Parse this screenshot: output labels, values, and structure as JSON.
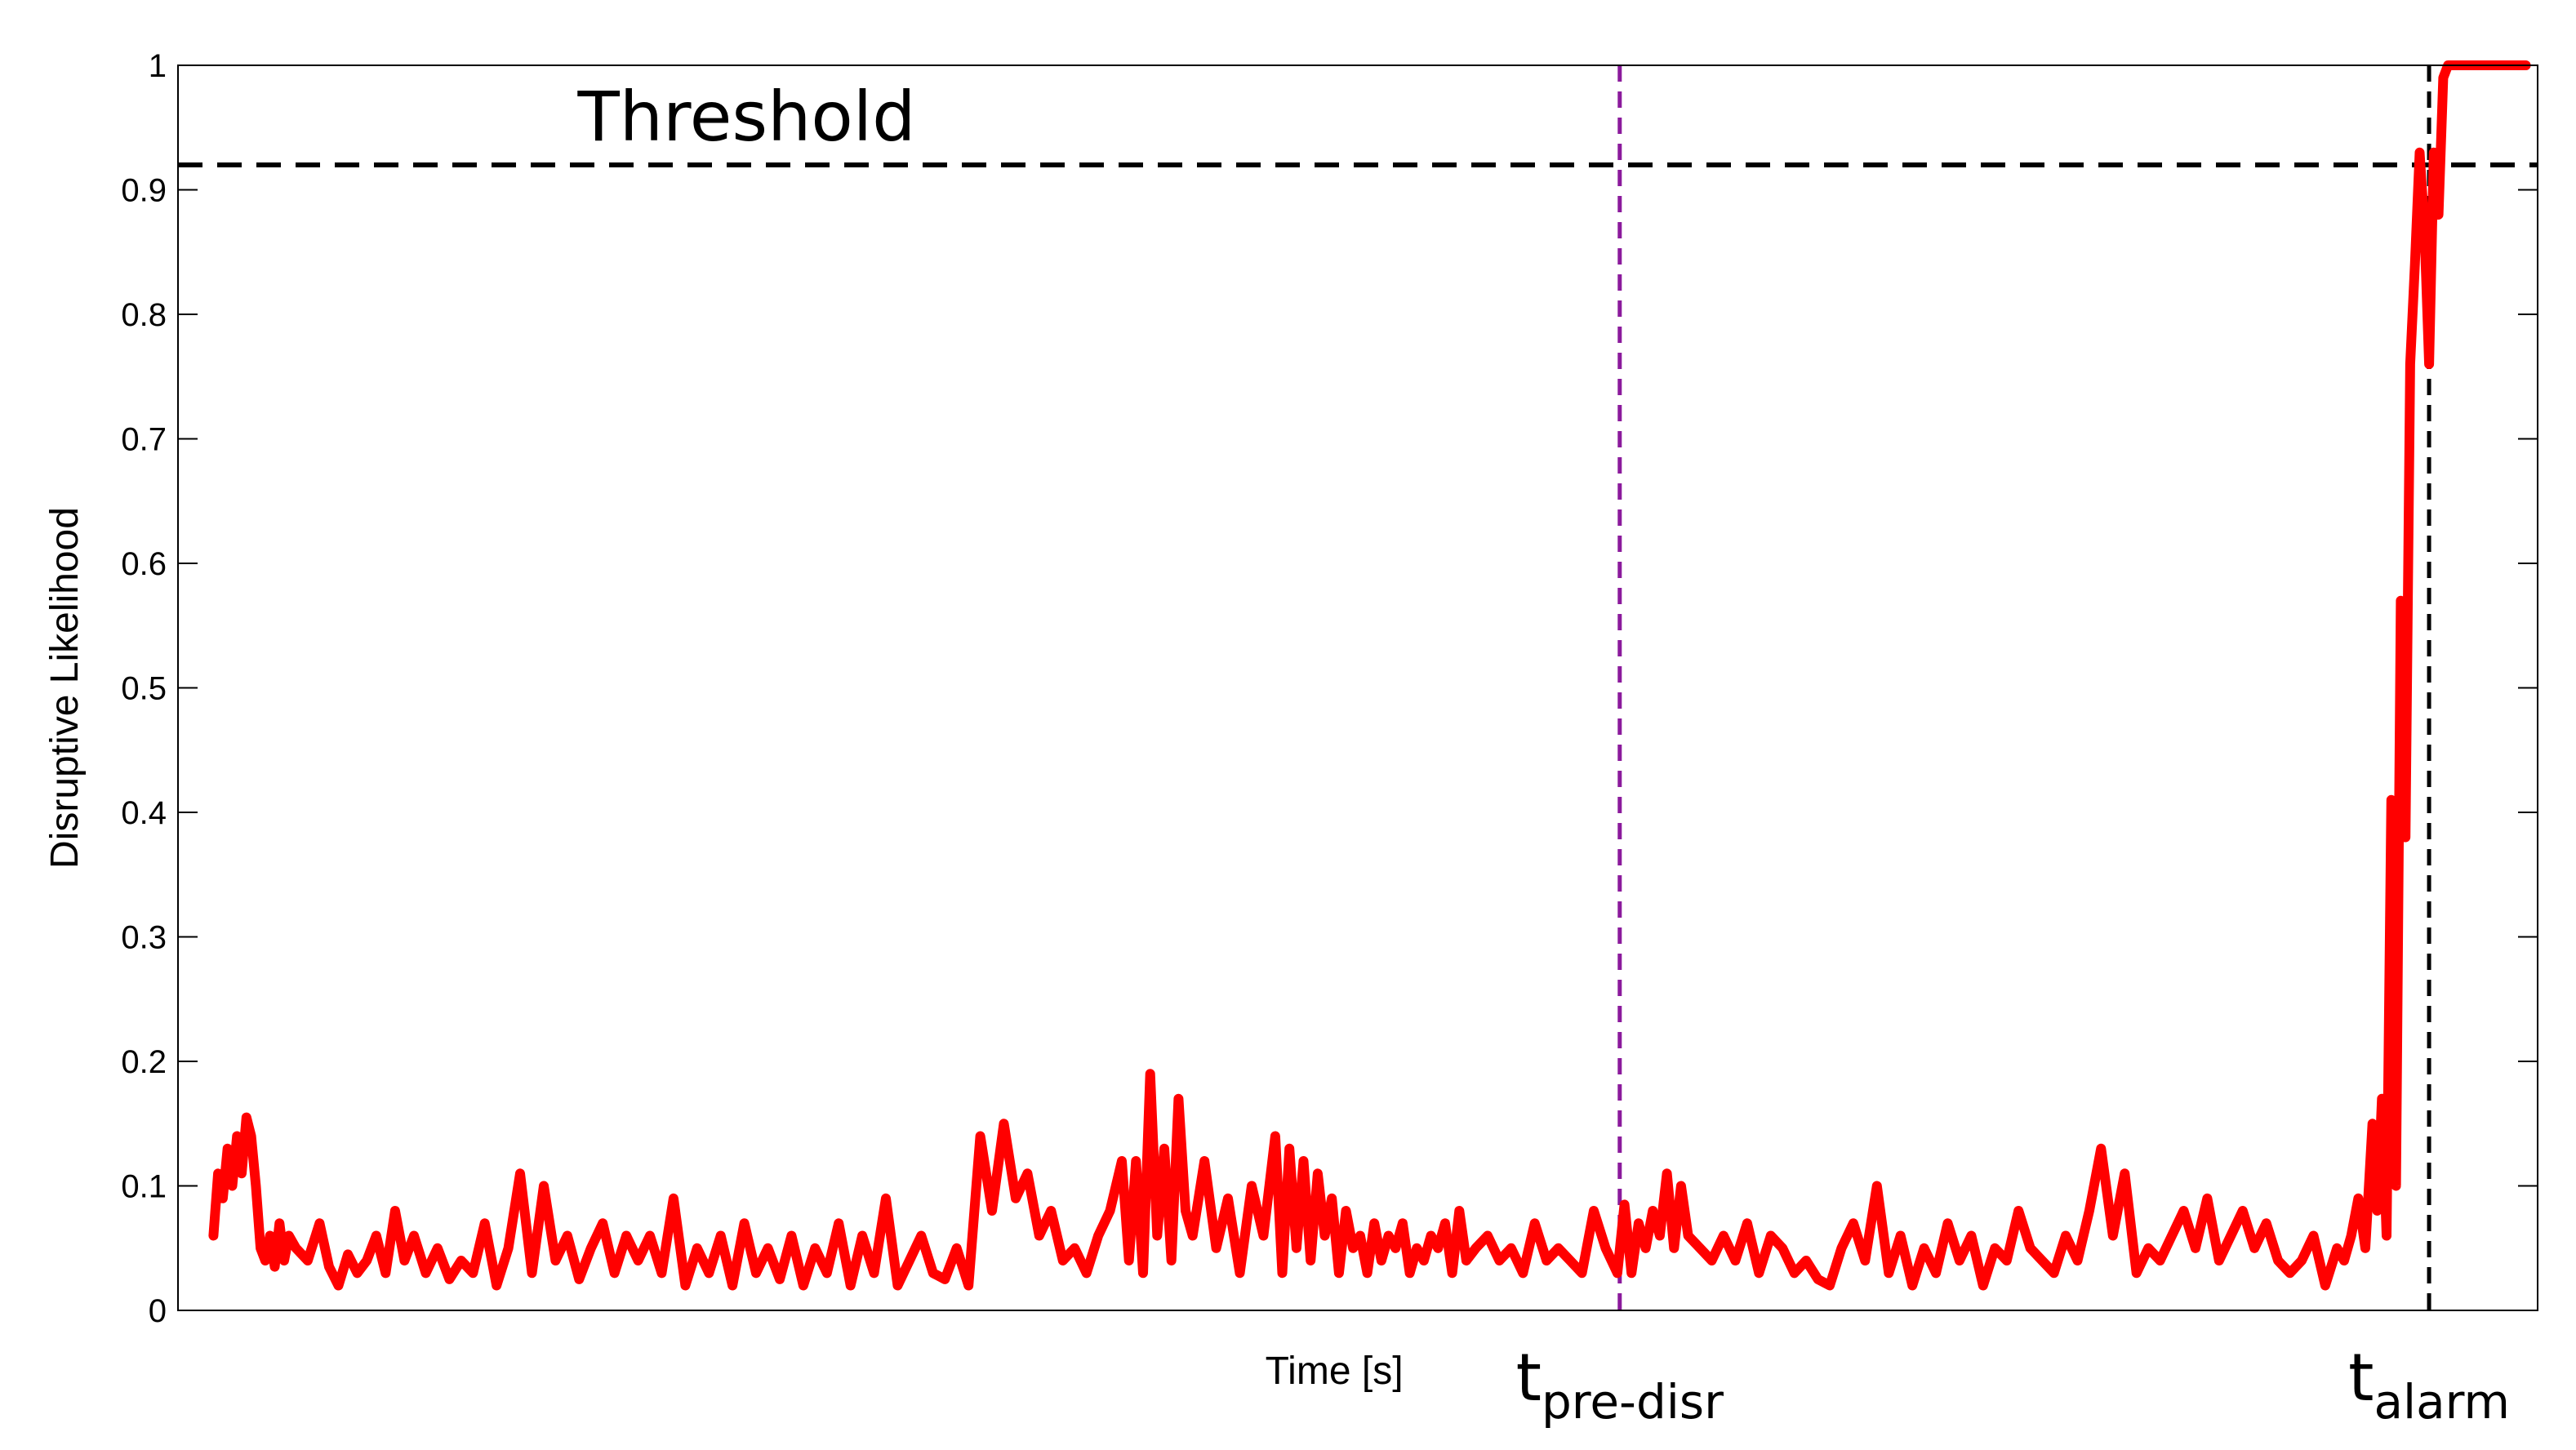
{
  "chart_data": {
    "type": "line",
    "title": "",
    "xlabel": "Time [s]",
    "ylabel": "Disruptive Likelihood",
    "ylim": [
      0,
      1
    ],
    "xlim": [
      0,
      1
    ],
    "yticks": [
      "0",
      "0.1",
      "0.2",
      "0.3",
      "0.4",
      "0.5",
      "0.6",
      "0.7",
      "0.8",
      "0.9",
      "1"
    ],
    "grid": false,
    "legend": "none",
    "line_color": "#ff0000",
    "threshold": {
      "label": "Threshold",
      "value": 0.92
    },
    "markers": [
      {
        "id": "pre_disr",
        "main": "t",
        "sub": "pre-disr",
        "x": 0.611,
        "color": "#8b1a9c"
      },
      {
        "id": "alarm",
        "main": "t",
        "sub": "alarm",
        "x": 0.954,
        "color": "#000000"
      }
    ],
    "series": [
      {
        "x": [
          0.015,
          0.017,
          0.019,
          0.021,
          0.023,
          0.025,
          0.027,
          0.029,
          0.031,
          0.033,
          0.035,
          0.037,
          0.039,
          0.041,
          0.043,
          0.045,
          0.047,
          0.05,
          0.055,
          0.06,
          0.064,
          0.068,
          0.072,
          0.076,
          0.08,
          0.084,
          0.088,
          0.092,
          0.096,
          0.1,
          0.105,
          0.11,
          0.115,
          0.12,
          0.125,
          0.13,
          0.135,
          0.14,
          0.145,
          0.15,
          0.155,
          0.16,
          0.165,
          0.17,
          0.175,
          0.18,
          0.185,
          0.19,
          0.195,
          0.2,
          0.205,
          0.21,
          0.215,
          0.22,
          0.225,
          0.23,
          0.235,
          0.24,
          0.245,
          0.25,
          0.255,
          0.26,
          0.265,
          0.27,
          0.275,
          0.28,
          0.285,
          0.29,
          0.295,
          0.3,
          0.305,
          0.31,
          0.315,
          0.32,
          0.325,
          0.33,
          0.335,
          0.34,
          0.345,
          0.35,
          0.355,
          0.36,
          0.365,
          0.37,
          0.375,
          0.38,
          0.385,
          0.39,
          0.395,
          0.4,
          0.403,
          0.406,
          0.409,
          0.412,
          0.415,
          0.418,
          0.421,
          0.424,
          0.427,
          0.43,
          0.435,
          0.44,
          0.445,
          0.45,
          0.455,
          0.46,
          0.465,
          0.468,
          0.471,
          0.474,
          0.477,
          0.48,
          0.483,
          0.486,
          0.489,
          0.492,
          0.495,
          0.498,
          0.501,
          0.504,
          0.507,
          0.51,
          0.513,
          0.516,
          0.519,
          0.522,
          0.525,
          0.528,
          0.531,
          0.534,
          0.537,
          0.54,
          0.543,
          0.546,
          0.55,
          0.555,
          0.56,
          0.565,
          0.57,
          0.575,
          0.58,
          0.585,
          0.59,
          0.595,
          0.6,
          0.605,
          0.61,
          0.613,
          0.616,
          0.619,
          0.622,
          0.625,
          0.628,
          0.631,
          0.634,
          0.637,
          0.64,
          0.645,
          0.65,
          0.655,
          0.66,
          0.665,
          0.67,
          0.675,
          0.68,
          0.685,
          0.69,
          0.695,
          0.7,
          0.705,
          0.71,
          0.715,
          0.72,
          0.725,
          0.73,
          0.735,
          0.74,
          0.745,
          0.75,
          0.755,
          0.76,
          0.765,
          0.77,
          0.775,
          0.78,
          0.785,
          0.79,
          0.795,
          0.8,
          0.805,
          0.81,
          0.815,
          0.82,
          0.825,
          0.83,
          0.835,
          0.84,
          0.845,
          0.85,
          0.855,
          0.86,
          0.865,
          0.87,
          0.875,
          0.88,
          0.885,
          0.89,
          0.895,
          0.9,
          0.905,
          0.91,
          0.915,
          0.918,
          0.921,
          0.924,
          0.927,
          0.93,
          0.932,
          0.934,
          0.936,
          0.938,
          0.94,
          0.942,
          0.944,
          0.946,
          0.948,
          0.95,
          0.952,
          0.954,
          0.956,
          0.958,
          0.96,
          0.962,
          0.964,
          0.966,
          0.968,
          0.97,
          0.975,
          0.98,
          0.985,
          0.99,
          0.995
        ],
        "y": [
          0.06,
          0.11,
          0.09,
          0.13,
          0.1,
          0.14,
          0.11,
          0.155,
          0.14,
          0.1,
          0.05,
          0.04,
          0.06,
          0.035,
          0.07,
          0.04,
          0.06,
          0.05,
          0.04,
          0.07,
          0.035,
          0.02,
          0.045,
          0.03,
          0.04,
          0.06,
          0.03,
          0.08,
          0.04,
          0.06,
          0.03,
          0.05,
          0.025,
          0.04,
          0.03,
          0.07,
          0.02,
          0.05,
          0.11,
          0.03,
          0.1,
          0.04,
          0.06,
          0.025,
          0.05,
          0.07,
          0.03,
          0.06,
          0.04,
          0.06,
          0.03,
          0.09,
          0.02,
          0.05,
          0.03,
          0.06,
          0.02,
          0.07,
          0.03,
          0.05,
          0.025,
          0.06,
          0.02,
          0.05,
          0.03,
          0.07,
          0.02,
          0.06,
          0.03,
          0.09,
          0.02,
          0.04,
          0.06,
          0.03,
          0.025,
          0.05,
          0.02,
          0.14,
          0.08,
          0.15,
          0.09,
          0.11,
          0.06,
          0.08,
          0.04,
          0.05,
          0.03,
          0.06,
          0.08,
          0.12,
          0.04,
          0.12,
          0.03,
          0.19,
          0.06,
          0.13,
          0.04,
          0.17,
          0.08,
          0.06,
          0.12,
          0.05,
          0.09,
          0.03,
          0.1,
          0.06,
          0.14,
          0.03,
          0.13,
          0.05,
          0.12,
          0.04,
          0.11,
          0.06,
          0.09,
          0.03,
          0.08,
          0.05,
          0.06,
          0.03,
          0.07,
          0.04,
          0.06,
          0.05,
          0.07,
          0.03,
          0.05,
          0.04,
          0.06,
          0.05,
          0.07,
          0.03,
          0.08,
          0.04,
          0.05,
          0.06,
          0.04,
          0.05,
          0.03,
          0.07,
          0.04,
          0.05,
          0.04,
          0.03,
          0.08,
          0.05,
          0.03,
          0.085,
          0.03,
          0.07,
          0.05,
          0.08,
          0.06,
          0.11,
          0.05,
          0.1,
          0.06,
          0.05,
          0.04,
          0.06,
          0.04,
          0.07,
          0.03,
          0.06,
          0.05,
          0.03,
          0.04,
          0.025,
          0.02,
          0.05,
          0.07,
          0.04,
          0.1,
          0.03,
          0.06,
          0.02,
          0.05,
          0.03,
          0.07,
          0.04,
          0.06,
          0.02,
          0.05,
          0.04,
          0.08,
          0.05,
          0.04,
          0.03,
          0.06,
          0.04,
          0.08,
          0.13,
          0.06,
          0.11,
          0.03,
          0.05,
          0.04,
          0.06,
          0.08,
          0.05,
          0.09,
          0.04,
          0.06,
          0.08,
          0.05,
          0.07,
          0.04,
          0.03,
          0.04,
          0.06,
          0.02,
          0.05,
          0.04,
          0.06,
          0.09,
          0.05,
          0.15,
          0.08,
          0.17,
          0.06,
          0.41,
          0.1,
          0.57,
          0.38,
          0.76,
          0.84,
          0.93,
          0.87,
          0.76,
          0.93,
          0.88,
          0.99,
          1.0,
          1.0,
          1.0,
          1.0,
          1.0,
          1.0,
          1.0,
          1.0,
          1.0,
          1.0
        ]
      }
    ]
  }
}
